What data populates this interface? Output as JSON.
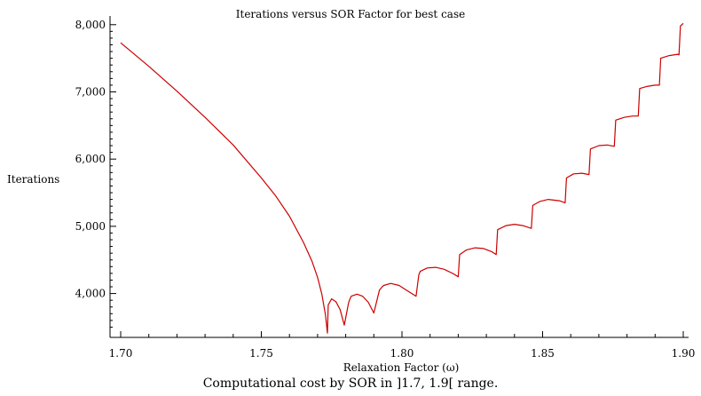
{
  "chart_data": {
    "type": "line",
    "title": "Iterations versus SOR Factor for best case",
    "xlabel": "Relaxation Factor (ω)",
    "ylabel": "Iterations",
    "xlim": [
      1.7,
      1.9
    ],
    "ylim": [
      3400,
      8050
    ],
    "x_ticks": [
      1.7,
      1.75,
      1.8,
      1.85,
      1.9
    ],
    "x_tick_labels": [
      "1.70",
      "1.75",
      "1.80",
      "1.85",
      "1.90"
    ],
    "y_ticks": [
      4000,
      5000,
      6000,
      7000,
      8000
    ],
    "y_tick_labels": [
      "4,000",
      "5,000",
      "6,000",
      "7,000",
      "8,000"
    ],
    "grid": false,
    "legend": "none",
    "series": [
      {
        "color": "#cc0000",
        "x": [
          1.7,
          1.71,
          1.72,
          1.73,
          1.74,
          1.75,
          1.755,
          1.76,
          1.765,
          1.768,
          1.77,
          1.7715,
          1.7728,
          1.7735,
          1.7738,
          1.775,
          1.7765,
          1.778,
          1.7795,
          1.781,
          1.7815,
          1.782,
          1.784,
          1.786,
          1.788,
          1.79,
          1.792,
          1.793,
          1.7935,
          1.796,
          1.799,
          1.802,
          1.805,
          1.806,
          1.8065,
          1.809,
          1.812,
          1.815,
          1.818,
          1.82,
          1.8205,
          1.823,
          1.826,
          1.829,
          1.832,
          1.8335,
          1.834,
          1.837,
          1.84,
          1.843,
          1.846,
          1.8465,
          1.849,
          1.852,
          1.856,
          1.858,
          1.8585,
          1.861,
          1.864,
          1.8665,
          1.867,
          1.87,
          1.873,
          1.8755,
          1.876,
          1.879,
          1.882,
          1.884,
          1.8845,
          1.887,
          1.89,
          1.8915,
          1.892,
          1.895,
          1.898,
          1.8985,
          1.899,
          1.9
        ],
        "y": [
          7730,
          7380,
          7010,
          6620,
          6210,
          5720,
          5460,
          5150,
          4760,
          4480,
          4240,
          3990,
          3680,
          3410,
          3830,
          3920,
          3880,
          3760,
          3530,
          3860,
          3920,
          3960,
          3990,
          3960,
          3870,
          3710,
          4050,
          4100,
          4120,
          4150,
          4120,
          4040,
          3960,
          4280,
          4330,
          4380,
          4390,
          4360,
          4300,
          4250,
          4580,
          4650,
          4680,
          4670,
          4620,
          4580,
          4950,
          5010,
          5030,
          5010,
          4970,
          5310,
          5370,
          5400,
          5380,
          5350,
          5720,
          5780,
          5790,
          5770,
          6150,
          6200,
          6210,
          6190,
          6580,
          6620,
          6640,
          6640,
          7050,
          7080,
          7100,
          7100,
          7500,
          7540,
          7560,
          7550,
          7980,
          8020
        ]
      }
    ]
  },
  "caption": "Computational cost by SOR in ]1.7, 1.9[ range."
}
